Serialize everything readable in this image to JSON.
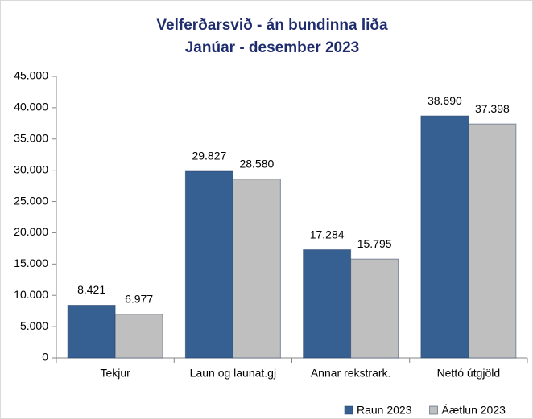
{
  "chart_data": {
    "type": "bar",
    "title": "Velferðarsvið - án bundinna liða",
    "subtitle": "Janúar - desember 2023",
    "categories": [
      "Tekjur",
      "Laun og launat.gj",
      "Annar rekstrark.",
      "Nettó útgjöld"
    ],
    "series": [
      {
        "name": "Raun 2023",
        "color": "#376092",
        "values": [
          8421,
          29827,
          17284,
          38690
        ],
        "value_labels": [
          "8.421",
          "29.827",
          "17.284",
          "38.690"
        ]
      },
      {
        "name": "Áætlun 2023",
        "color": "#bfbfbf",
        "values": [
          6977,
          28580,
          15795,
          37398
        ],
        "value_labels": [
          "6.977",
          "28.580",
          "15.795",
          "37.398"
        ]
      }
    ],
    "ylim": [
      0,
      45000
    ],
    "yticks": [
      0,
      {
        "value": 5000,
        "label": "5.000"
      },
      {
        "value": 10000,
        "label": "10.000"
      },
      {
        "value": 15000,
        "label": "15.000"
      },
      {
        "value": 20000,
        "label": "20.000"
      },
      {
        "value": 25000,
        "label": "25.000"
      },
      {
        "value": 30000,
        "label": "30.000"
      },
      {
        "value": 35000,
        "label": "35.000"
      },
      {
        "value": 40000,
        "label": "40.000"
      },
      {
        "value": 45000,
        "label": "45.000"
      }
    ],
    "grid": false,
    "legend": "bottom-right"
  }
}
